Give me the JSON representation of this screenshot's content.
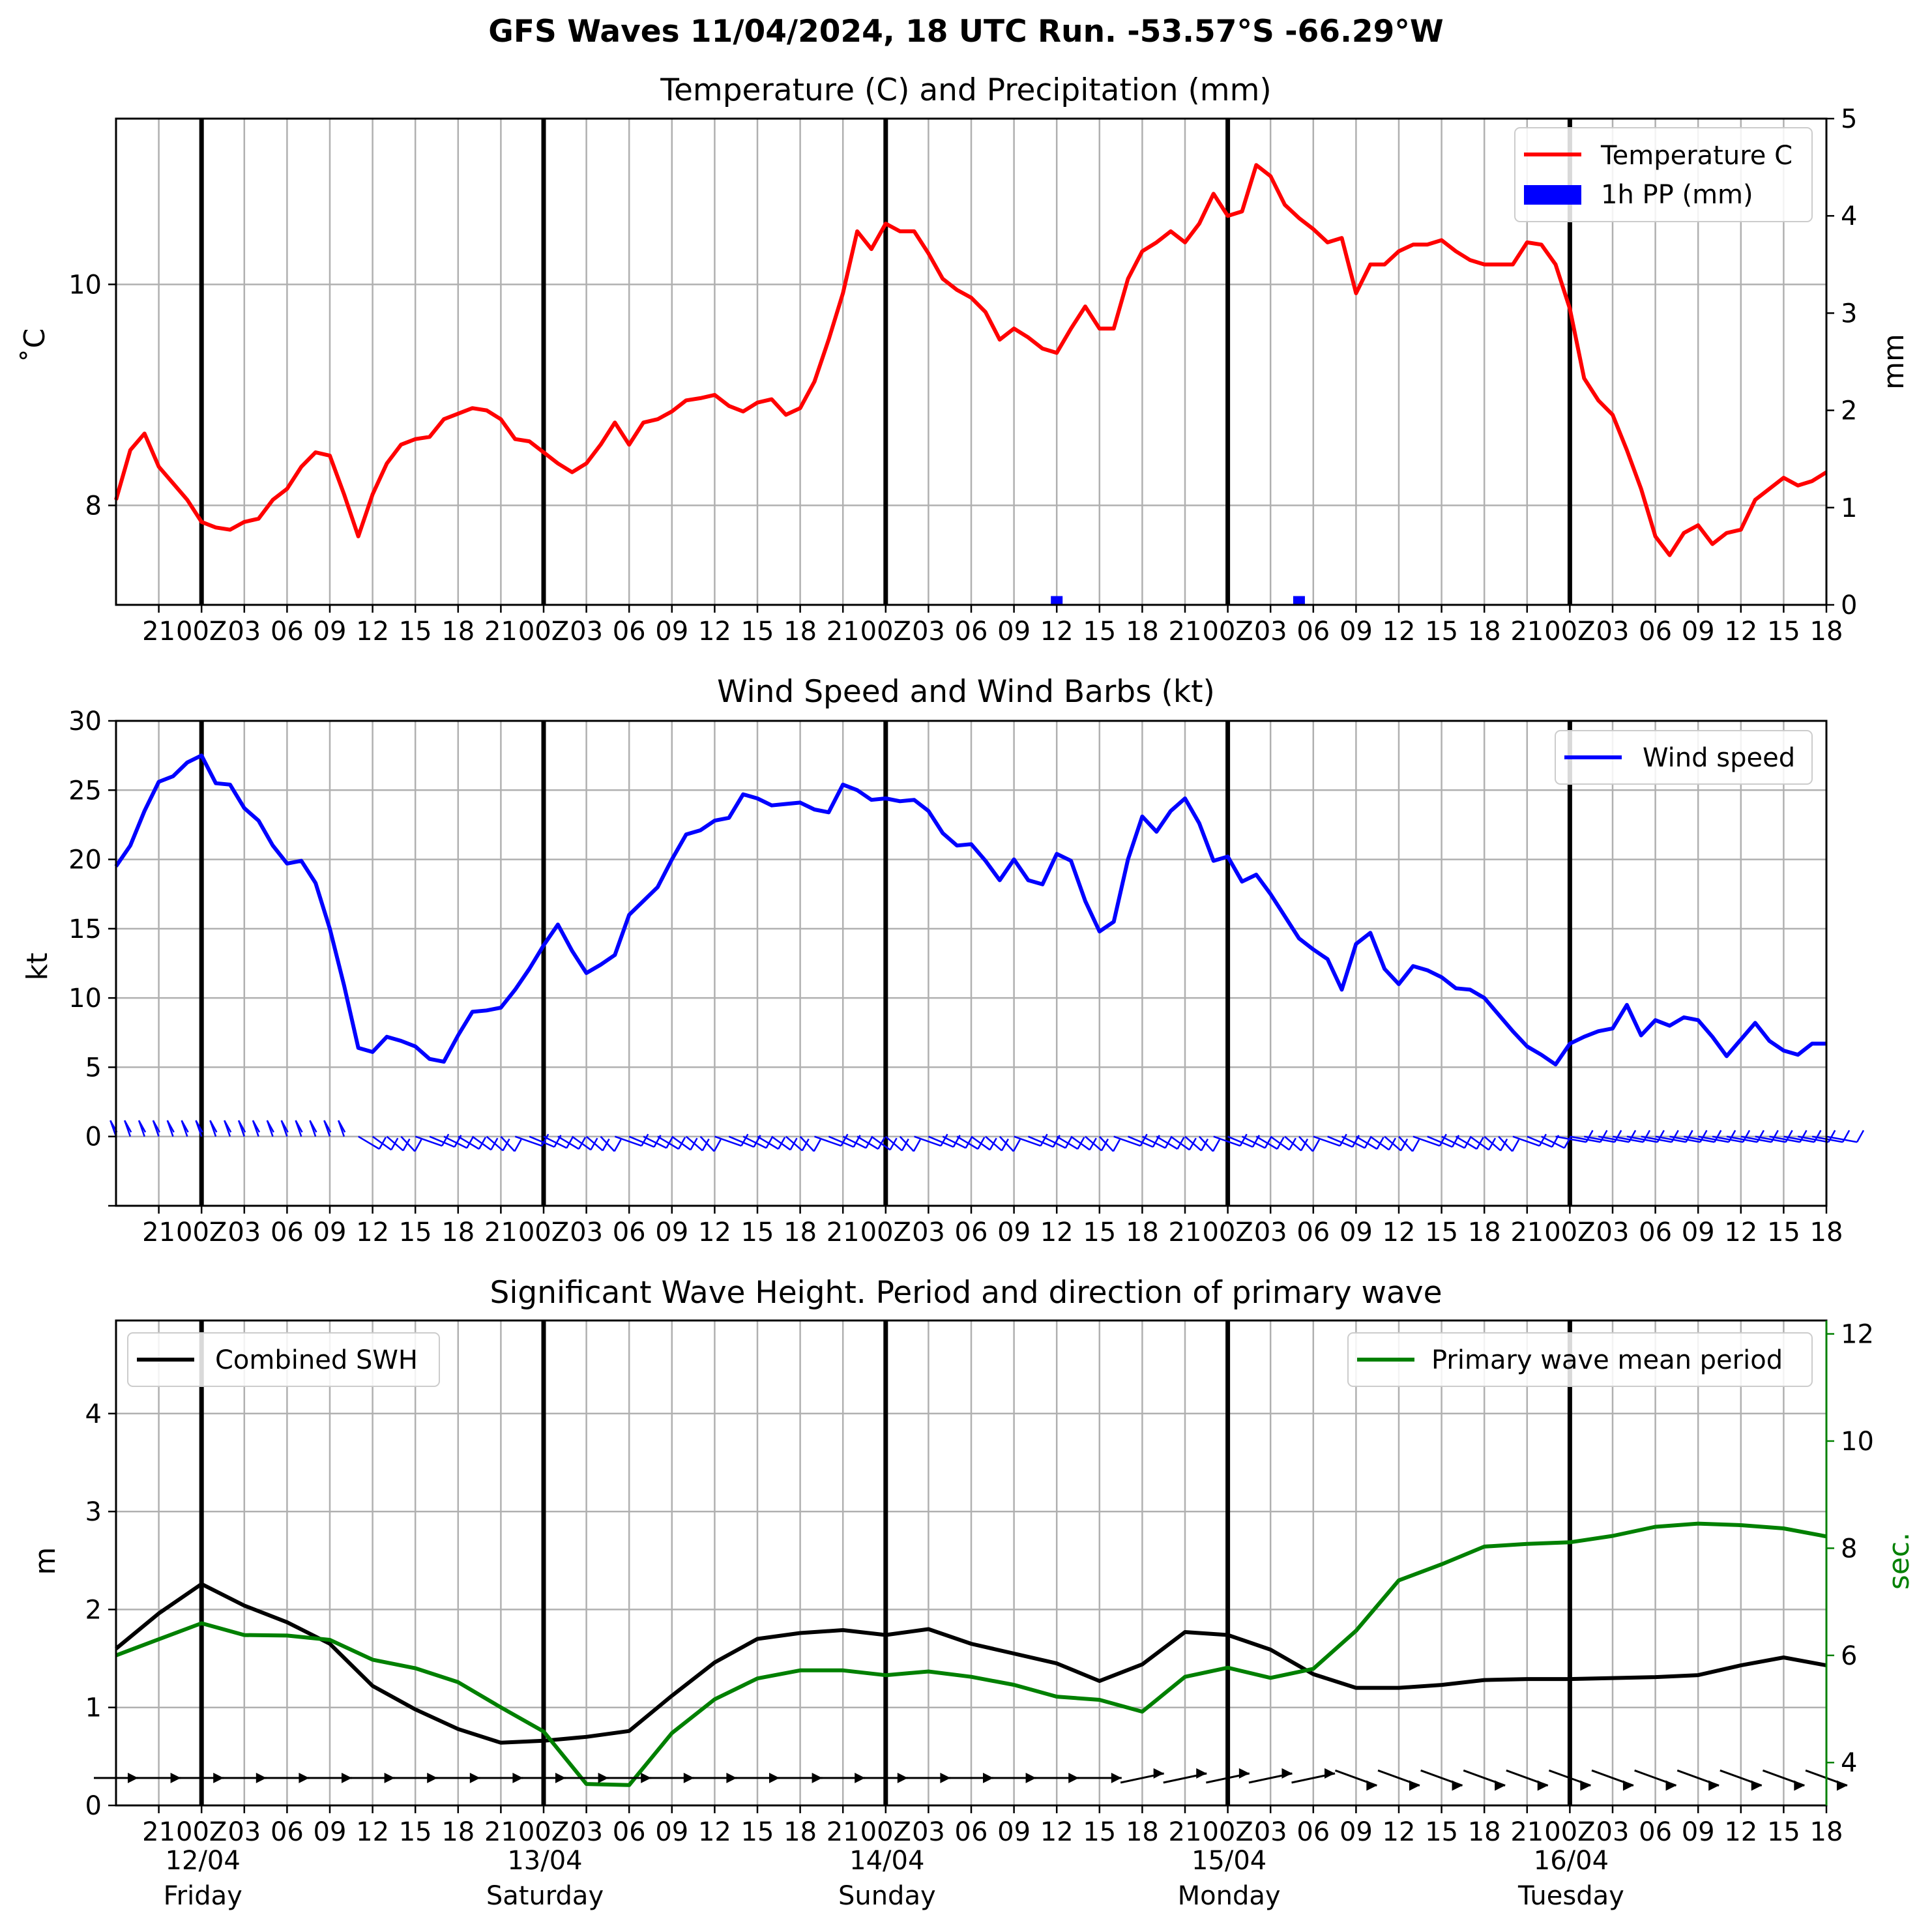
{
  "suptitle": "GFS Waves 11/04/2024, 18 UTC Run. -53.57°S -66.29°W",
  "colors": {
    "temperature": "#ff0000",
    "precip": "#0000ff",
    "wind": "#0000ff",
    "swh": "#000000",
    "period": "#008000",
    "barbs_wind": "#0000ff",
    "barbs_wave": "#000000",
    "grid": "#b0b0b0"
  },
  "time_axis": {
    "start_hour_label": "18 UTC 11/04",
    "hour_ticks": [
      "21",
      "00Z",
      "03",
      "06",
      "09",
      "12",
      "15",
      "18",
      "21",
      "00Z",
      "03",
      "06",
      "09",
      "12",
      "15",
      "18",
      "21",
      "00Z",
      "03",
      "06",
      "09",
      "12",
      "15",
      "18",
      "21",
      "00Z",
      "03",
      "06",
      "09",
      "12",
      "15",
      "18",
      "21",
      "00Z",
      "03",
      "06",
      "09",
      "12",
      "15",
      "18"
    ],
    "day_dates": [
      "12/04",
      "13/04",
      "14/04",
      "15/04",
      "16/04"
    ],
    "day_names": [
      "Friday",
      "Saturday",
      "Sunday",
      "Monday",
      "Tuesday"
    ]
  },
  "chart_data": [
    {
      "type": "line",
      "title": "Temperature (C) and Precipitation (mm)",
      "ylabel": "$^\\circ$C",
      "ylabel_display": "˚C",
      "y2label": "mm",
      "ylim": [
        7.1,
        11.5
      ],
      "y2lim": [
        0,
        5
      ],
      "yticks": [
        "8",
        "10"
      ],
      "y2ticks": [
        "0",
        "1",
        "2",
        "3",
        "4",
        "5"
      ],
      "xlim_hours": [
        0,
        120
      ],
      "legend": [
        "Temperature C",
        "1h PP (mm)"
      ],
      "legend_position": "top-right",
      "series": [
        {
          "name": "Temperature C",
          "kind": "line",
          "x": [
            0,
            1,
            2,
            3,
            4,
            5,
            6,
            7,
            8,
            9,
            10,
            11,
            12,
            13,
            14,
            15,
            16,
            17,
            18,
            19,
            20,
            21,
            22,
            23,
            24,
            25,
            26,
            27,
            28,
            29,
            30,
            31,
            32,
            33,
            34,
            35,
            36,
            37,
            38,
            39,
            40,
            41,
            42,
            43,
            44,
            45,
            46,
            47,
            48,
            49,
            50,
            51,
            52,
            53,
            54,
            55,
            56,
            57,
            58,
            59,
            60,
            61,
            62,
            63,
            64,
            65,
            66,
            67,
            68,
            69,
            70,
            71,
            72,
            73,
            74,
            75,
            76,
            77,
            78,
            79,
            80,
            81,
            82,
            83,
            84,
            85,
            86,
            87,
            88,
            89,
            90,
            91,
            92,
            93,
            94,
            95,
            96,
            97,
            98,
            99,
            100,
            101,
            102,
            103,
            104,
            105,
            106,
            107,
            108,
            109,
            110,
            111,
            112,
            113,
            114,
            115,
            116,
            117,
            118,
            119,
            120
          ],
          "y": [
            8.05,
            8.5,
            8.65,
            8.35,
            8.2,
            8.05,
            7.85,
            7.8,
            7.78,
            7.85,
            7.88,
            8.05,
            8.15,
            8.35,
            8.48,
            8.45,
            8.1,
            7.72,
            8.1,
            8.38,
            8.55,
            8.6,
            8.62,
            8.78,
            8.83,
            8.88,
            8.86,
            8.78,
            8.6,
            8.58,
            8.48,
            8.38,
            8.3,
            8.38,
            8.55,
            8.75,
            8.55,
            8.75,
            8.78,
            8.85,
            8.95,
            8.97,
            9.0,
            8.9,
            8.85,
            8.93,
            8.96,
            8.82,
            8.88,
            9.12,
            9.5,
            9.92,
            10.48,
            10.32,
            10.55,
            10.48,
            10.48,
            10.28,
            10.05,
            9.95,
            9.88,
            9.75,
            9.5,
            9.6,
            9.52,
            9.42,
            9.38,
            9.6,
            9.8,
            9.6,
            9.6,
            10.05,
            10.3,
            10.38,
            10.48,
            10.38,
            10.55,
            10.82,
            10.62,
            10.66,
            11.08,
            10.98,
            10.72,
            10.6,
            10.5,
            10.38,
            10.42,
            9.92,
            10.18,
            10.18,
            10.3,
            10.36,
            10.36,
            10.4,
            10.3,
            10.22,
            10.18,
            10.18,
            10.18,
            10.38,
            10.36,
            10.18,
            9.78,
            9.15,
            8.95,
            8.82,
            8.5,
            8.15,
            7.72,
            7.55,
            7.75,
            7.82,
            7.65,
            7.75,
            7.78,
            8.05,
            8.15,
            8.25,
            8.18,
            8.22,
            8.3
          ]
        },
        {
          "name": "1h PP (mm)",
          "kind": "bar",
          "x": [
            66,
            83
          ],
          "y": [
            0.05,
            0.05
          ]
        }
      ]
    },
    {
      "type": "line",
      "title": "Wind Speed and Wind Barbs (kt)",
      "ylabel": "kt",
      "ylim": [
        -5,
        30
      ],
      "yticks": [
        "0",
        "5",
        "10",
        "15",
        "20",
        "25",
        "30"
      ],
      "xlim_hours": [
        0,
        120
      ],
      "legend": [
        "Wind speed"
      ],
      "legend_position": "top-right",
      "series": [
        {
          "name": "Wind speed",
          "x": [
            0,
            1,
            2,
            3,
            4,
            5,
            6,
            7,
            8,
            9,
            10,
            11,
            12,
            13,
            14,
            15,
            16,
            17,
            18,
            19,
            20,
            21,
            22,
            23,
            24,
            25,
            26,
            27,
            28,
            29,
            30,
            31,
            32,
            33,
            34,
            35,
            36,
            37,
            38,
            39,
            40,
            41,
            42,
            43,
            44,
            45,
            46,
            47,
            48,
            49,
            50,
            51,
            52,
            53,
            54,
            55,
            56,
            57,
            58,
            59,
            60,
            61,
            62,
            63,
            64,
            65,
            66,
            67,
            68,
            69,
            70,
            71,
            72,
            73,
            74,
            75,
            76,
            77,
            78,
            79,
            80,
            81,
            82,
            83,
            84,
            85,
            86,
            87,
            88,
            89,
            90,
            91,
            92,
            93,
            94,
            95,
            96,
            97,
            98,
            99,
            100,
            101,
            102,
            103,
            104,
            105,
            106,
            107,
            108,
            109,
            110,
            111,
            112,
            113,
            114,
            115,
            116,
            117,
            118,
            119,
            120
          ],
          "y": [
            19.5,
            21.0,
            23.5,
            25.6,
            26.0,
            27.0,
            27.5,
            25.5,
            25.4,
            23.7,
            22.8,
            21.0,
            19.7,
            19.9,
            18.3,
            15.0,
            10.9,
            6.4,
            6.1,
            7.2,
            6.9,
            6.5,
            5.6,
            5.4,
            7.3,
            9.0,
            9.1,
            9.3,
            10.6,
            12.1,
            13.8,
            15.3,
            13.4,
            11.8,
            12.4,
            13.1,
            16.0,
            17.0,
            18.0,
            20.0,
            21.8,
            22.1,
            22.8,
            23.0,
            24.7,
            24.4,
            23.9,
            24.0,
            24.1,
            23.6,
            23.4,
            25.4,
            25.0,
            24.3,
            24.4,
            24.2,
            24.3,
            23.5,
            21.9,
            21.0,
            21.1,
            19.9,
            18.5,
            20.0,
            18.5,
            18.2,
            20.4,
            19.9,
            17.0,
            14.8,
            15.5,
            20.0,
            23.1,
            22.0,
            23.5,
            24.4,
            22.6,
            19.9,
            20.2,
            18.4,
            18.9,
            17.5,
            15.9,
            14.3,
            13.5,
            12.8,
            10.6,
            13.9,
            14.7,
            12.1,
            11.0,
            12.3,
            12.0,
            11.5,
            10.7,
            10.6,
            10.0,
            8.8,
            7.6,
            6.5,
            5.9,
            5.2,
            6.7,
            7.2,
            7.6,
            7.8,
            9.5,
            7.3,
            8.4,
            8.0,
            8.6,
            8.4,
            7.2,
            5.8,
            7.0,
            8.2,
            6.9,
            6.2,
            5.9,
            6.7,
            6.7
          ]
        }
      ]
    },
    {
      "type": "line",
      "title": "Significant Wave Height. Period and direction of primary wave",
      "ylabel": "m",
      "y2label": "sec.",
      "ylim": [
        0,
        4.95
      ],
      "y2lim": [
        3.2,
        12.25
      ],
      "yticks": [
        "0",
        "1",
        "2",
        "3",
        "4"
      ],
      "y2ticks": [
        "4",
        "6",
        "8",
        "10",
        "12"
      ],
      "xlim_hours": [
        0,
        120
      ],
      "legend": [
        "Combined SWH",
        "Primary wave mean period"
      ],
      "legend_position": "top-left / top-right",
      "series": [
        {
          "name": "Combined SWH",
          "x": [
            0,
            3,
            6,
            9,
            12,
            15,
            18,
            21,
            24,
            27,
            30,
            33,
            36,
            39,
            42,
            45,
            48,
            51,
            54,
            57,
            60,
            63,
            66,
            69,
            72,
            75,
            78,
            81,
            84,
            87,
            90,
            93,
            96,
            99,
            102,
            105,
            108,
            111,
            114,
            117,
            120
          ],
          "y": [
            1.6,
            1.96,
            2.26,
            2.04,
            1.87,
            1.65,
            1.22,
            0.98,
            0.78,
            0.64,
            0.66,
            0.7,
            0.76,
            1.12,
            1.46,
            1.7,
            1.76,
            1.79,
            1.74,
            1.8,
            1.65,
            1.55,
            1.45,
            1.27,
            1.44,
            1.77,
            1.74,
            1.59,
            1.34,
            1.2,
            1.2,
            1.23,
            1.28,
            1.29,
            1.29,
            1.3,
            1.31,
            1.33,
            1.43,
            1.51,
            1.43
          ]
        },
        {
          "name": "Primary wave mean period",
          "x": [
            0,
            3,
            6,
            9,
            12,
            15,
            18,
            21,
            24,
            27,
            30,
            33,
            36,
            39,
            42,
            45,
            48,
            51,
            54,
            57,
            60,
            63,
            66,
            69,
            72,
            75,
            78,
            81,
            84,
            87,
            90,
            93,
            96,
            99,
            102,
            105,
            108,
            111,
            114,
            117,
            120
          ],
          "y": [
            6.0,
            6.3,
            6.6,
            6.38,
            6.37,
            6.29,
            5.92,
            5.76,
            5.5,
            5.03,
            4.58,
            3.6,
            3.58,
            4.55,
            5.18,
            5.57,
            5.72,
            5.72,
            5.63,
            5.7,
            5.6,
            5.45,
            5.23,
            5.17,
            4.95,
            5.6,
            5.77,
            5.58,
            5.75,
            6.46,
            7.4,
            7.7,
            8.03,
            8.08,
            8.11,
            8.23,
            8.4,
            8.46,
            8.43,
            8.37,
            8.22
          ]
        }
      ],
      "wave_direction_arrows_x": [
        0,
        3,
        6,
        9,
        12,
        15,
        18,
        21,
        24,
        27,
        30,
        33,
        36,
        39,
        42,
        45,
        48,
        51,
        54,
        57,
        60,
        63,
        66,
        69,
        72,
        75,
        78,
        81,
        84,
        87,
        90,
        93,
        96,
        99,
        102,
        105,
        108,
        111,
        114,
        117,
        120
      ]
    }
  ]
}
